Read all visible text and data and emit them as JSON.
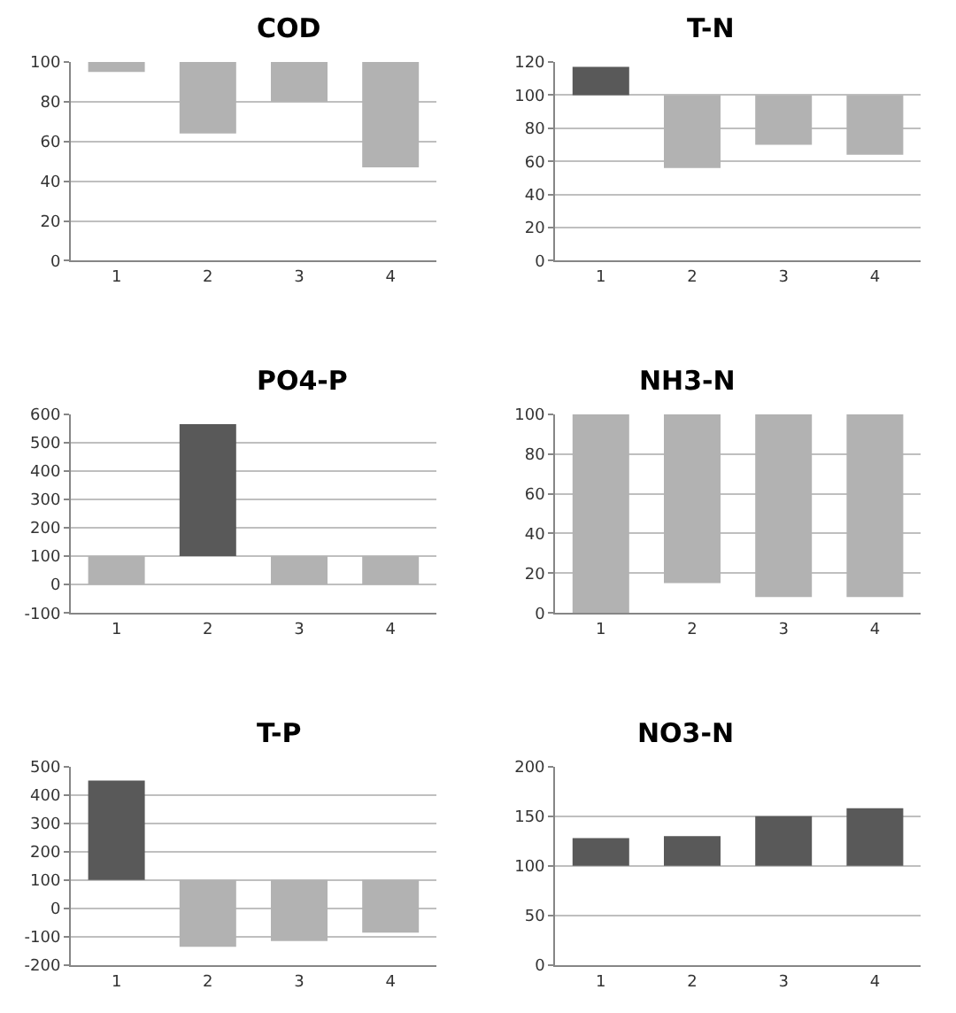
{
  "chart_data": [
    {
      "type": "bar",
      "title": "COD",
      "categories": [
        "1",
        "2",
        "3",
        "4"
      ],
      "base": [
        100,
        100,
        100,
        100
      ],
      "values": [
        -5,
        -36,
        -20,
        -53
      ],
      "colors": [
        "#b2b2b2",
        "#b2b2b2",
        "#b2b2b2",
        "#b2b2b2"
      ],
      "ylim": [
        0,
        100
      ],
      "yticks": [
        0,
        20,
        40,
        60,
        80,
        100
      ],
      "grid": "y"
    },
    {
      "type": "bar",
      "title": "T-N",
      "categories": [
        "1",
        "2",
        "3",
        "4"
      ],
      "base": [
        100,
        100,
        100,
        100
      ],
      "values": [
        17,
        -44,
        -30,
        -36
      ],
      "colors": [
        "#595959",
        "#b2b2b2",
        "#b2b2b2",
        "#b2b2b2"
      ],
      "ylim": [
        0,
        120
      ],
      "yticks": [
        0,
        20,
        40,
        60,
        80,
        100,
        120
      ],
      "grid": "y"
    },
    {
      "type": "bar",
      "title": "PO4-P",
      "categories": [
        "1",
        "2",
        "3",
        "4"
      ],
      "base": [
        100,
        100,
        100,
        100
      ],
      "values": [
        -100,
        465,
        -100,
        -100
      ],
      "colors": [
        "#b2b2b2",
        "#595959",
        "#b2b2b2",
        "#b2b2b2"
      ],
      "ylim": [
        -100,
        600
      ],
      "yticks": [
        -100,
        0,
        100,
        200,
        300,
        400,
        500,
        600
      ],
      "grid": "y"
    },
    {
      "type": "bar",
      "title": "NH3-N",
      "categories": [
        "1",
        "2",
        "3",
        "4"
      ],
      "base": [
        100,
        100,
        100,
        100
      ],
      "values": [
        -100,
        -85,
        -92,
        -92
      ],
      "colors": [
        "#b2b2b2",
        "#b2b2b2",
        "#b2b2b2",
        "#b2b2b2"
      ],
      "ylim": [
        0,
        100
      ],
      "yticks": [
        0,
        20,
        40,
        60,
        80,
        100
      ],
      "grid": "y"
    },
    {
      "type": "bar",
      "title": "T-P",
      "categories": [
        "1",
        "2",
        "3",
        "4"
      ],
      "base": [
        100,
        100,
        100,
        100
      ],
      "values": [
        350,
        -235,
        -215,
        -185
      ],
      "colors": [
        "#595959",
        "#b2b2b2",
        "#b2b2b2",
        "#b2b2b2"
      ],
      "ylim": [
        -200,
        500
      ],
      "yticks": [
        -200,
        -100,
        0,
        100,
        200,
        300,
        400,
        500
      ],
      "grid": "y"
    },
    {
      "type": "bar",
      "title": "NO3-N",
      "categories": [
        "1",
        "2",
        "3",
        "4"
      ],
      "base": [
        100,
        100,
        100,
        100
      ],
      "values": [
        28,
        30,
        50,
        58
      ],
      "colors": [
        "#595959",
        "#595959",
        "#595959",
        "#595959"
      ],
      "ylim": [
        0,
        200
      ],
      "yticks": [
        0,
        50,
        100,
        150,
        200
      ],
      "grid": "y"
    }
  ]
}
